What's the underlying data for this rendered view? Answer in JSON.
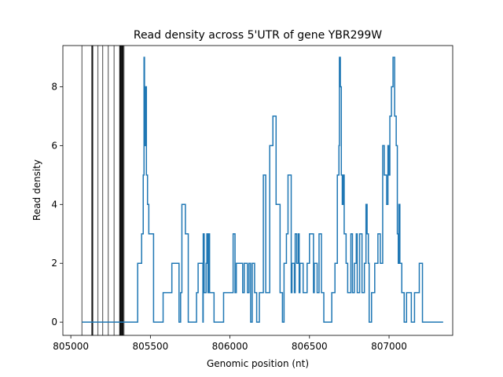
{
  "chart_data": {
    "type": "line",
    "title": "Read density across 5'UTR of gene YBR299W",
    "xlabel": "Genomic position (nt)",
    "ylabel": "Read density",
    "xlim": [
      804950,
      807400
    ],
    "ylim": [
      -0.45,
      9.4
    ],
    "x_ticks": [
      805000,
      805500,
      806000,
      806500,
      807000
    ],
    "y_ticks": [
      0,
      2,
      4,
      6,
      8
    ],
    "grid": false,
    "line_color": "#1f77b4",
    "vline_color": "#000000",
    "vlines": [
      {
        "x": 805070,
        "weight": "thin"
      },
      {
        "x": 805135,
        "weight": "thick"
      },
      {
        "x": 805170,
        "weight": "thin"
      },
      {
        "x": 805200,
        "weight": "thin"
      },
      {
        "x": 805235,
        "weight": "thin"
      },
      {
        "x": 805272,
        "weight": "thin"
      },
      {
        "x": 805310,
        "weight": "thick"
      },
      {
        "x": 805318,
        "weight": "thick"
      },
      {
        "x": 805326,
        "weight": "thick"
      },
      {
        "x": 805334,
        "weight": "thin"
      }
    ],
    "series": [
      {
        "x": [
          805070,
          805420,
          805445,
          805455,
          805460,
          805463,
          805468,
          805475,
          805482,
          805490,
          805520,
          805580,
          805635,
          805680,
          805690,
          805698,
          805720,
          805738,
          805790,
          805800,
          805830,
          805832,
          805838,
          805850,
          805855,
          805862,
          805868,
          805872,
          805900,
          805960,
          806020,
          806032,
          806040,
          806080,
          806090,
          806110,
          806120,
          806130,
          806140,
          806155,
          806168,
          806185,
          806210,
          806225,
          806250,
          806270,
          806290,
          806315,
          806330,
          806340,
          806355,
          806365,
          806385,
          806390,
          806405,
          806410,
          806420,
          806430,
          806435,
          806440,
          806460,
          806485,
          806500,
          806525,
          806530,
          806548,
          806560,
          806575,
          806590,
          806640,
          806660,
          806675,
          806685,
          806688,
          806694,
          806700,
          806706,
          806712,
          806718,
          806730,
          806740,
          806760,
          806770,
          806782,
          806794,
          806800,
          806815,
          806830,
          806845,
          806855,
          806862,
          806870,
          806875,
          806890,
          806910,
          806930,
          806945,
          806960,
          806970,
          806985,
          806993,
          807000,
          807005,
          807015,
          807025,
          807035,
          807045,
          807052,
          807058,
          807062,
          807068,
          807080,
          807095,
          807110,
          807140,
          807160,
          807190,
          807210,
          807230,
          807270,
          807340
        ],
        "y": [
          0,
          2,
          3,
          5,
          9,
          6,
          8,
          5,
          4,
          3,
          0,
          1,
          2,
          0,
          1,
          4,
          3,
          0,
          1,
          2,
          0,
          3,
          1,
          2,
          3,
          1,
          3,
          1,
          0,
          1,
          3,
          1,
          2,
          1,
          2,
          1,
          2,
          0,
          2,
          1,
          0,
          1,
          5,
          1,
          6,
          7,
          4,
          1,
          0,
          2,
          3,
          5,
          1,
          2,
          1,
          3,
          2,
          3,
          1,
          2,
          1,
          2,
          3,
          1,
          2,
          1,
          3,
          1,
          0,
          1,
          2,
          5,
          6,
          9,
          8,
          5,
          4,
          5,
          3,
          2,
          1,
          3,
          1,
          2,
          3,
          1,
          3,
          1,
          2,
          4,
          3,
          2,
          0,
          1,
          2,
          3,
          2,
          6,
          5,
          4,
          6,
          5,
          7,
          8,
          9,
          7,
          6,
          3,
          2,
          4,
          2,
          1,
          0,
          1,
          0,
          1,
          2,
          0,
          0,
          0,
          0
        ]
      }
    ]
  }
}
